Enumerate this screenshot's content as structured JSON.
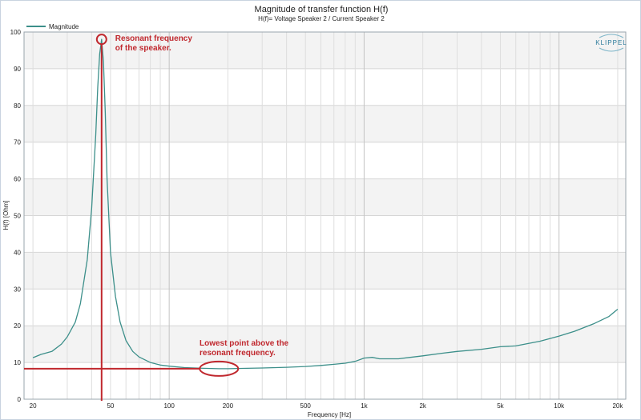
{
  "chart_data": {
    "type": "line",
    "title": "Magnitude of transfer function H(f)",
    "subtitle": "H(f)= Voltage Speaker 2 / Current Speaker 2",
    "xlabel": "Frequency [Hz]",
    "ylabel": "H(f) [Ohm]",
    "x_scale": "log",
    "xlim": [
      18,
      22000
    ],
    "ylim": [
      0,
      100
    ],
    "x_ticks": [
      20,
      50,
      100,
      200,
      500,
      1000,
      2000,
      5000,
      10000,
      20000
    ],
    "x_tick_labels": [
      "20",
      "50",
      "100",
      "200",
      "500",
      "1k",
      "2k",
      "5k",
      "10k",
      "20k"
    ],
    "y_ticks": [
      0,
      10,
      20,
      30,
      40,
      50,
      60,
      70,
      80,
      90,
      100
    ],
    "grid": true,
    "legend_position": "top-left",
    "series": [
      {
        "name": "Magnitude",
        "color": "#3c8f8a",
        "x": [
          20,
          22,
          25,
          28,
          30,
          33,
          35,
          38,
          40,
          42,
          43,
          44,
          45,
          46,
          47,
          48,
          50,
          53,
          56,
          60,
          65,
          70,
          80,
          90,
          100,
          120,
          150,
          180,
          200,
          250,
          300,
          400,
          500,
          600,
          700,
          800,
          900,
          1000,
          1100,
          1200,
          1500,
          2000,
          2500,
          3000,
          4000,
          5000,
          6000,
          8000,
          10000,
          12000,
          15000,
          18000,
          20000
        ],
        "y": [
          11.3,
          12.2,
          13.0,
          15.0,
          17.0,
          21.0,
          26.0,
          38.0,
          52.0,
          72.0,
          85.0,
          94.0,
          98.0,
          92.0,
          78.0,
          60.0,
          40.0,
          28.0,
          21.0,
          16.0,
          13.0,
          11.5,
          10.0,
          9.3,
          9.0,
          8.6,
          8.4,
          8.3,
          8.3,
          8.4,
          8.5,
          8.7,
          8.9,
          9.2,
          9.5,
          9.8,
          10.3,
          11.2,
          11.4,
          11.0,
          11.0,
          11.8,
          12.5,
          13.0,
          13.6,
          14.3,
          14.5,
          15.8,
          17.2,
          18.5,
          20.5,
          22.5,
          24.5
        ]
      }
    ],
    "annotations": [
      {
        "text": [
          "Resonant frequency",
          "of the speaker."
        ],
        "x": 45,
        "y": 98,
        "color": "#c0282e"
      },
      {
        "text": [
          "Lowest point above the",
          "resonant frequency."
        ],
        "x": 180,
        "y": 8.3,
        "color": "#c0282e"
      }
    ],
    "logo": "KLIPPEL",
    "background_bands": [
      "#ffffff",
      "#f3f3f3"
    ]
  }
}
